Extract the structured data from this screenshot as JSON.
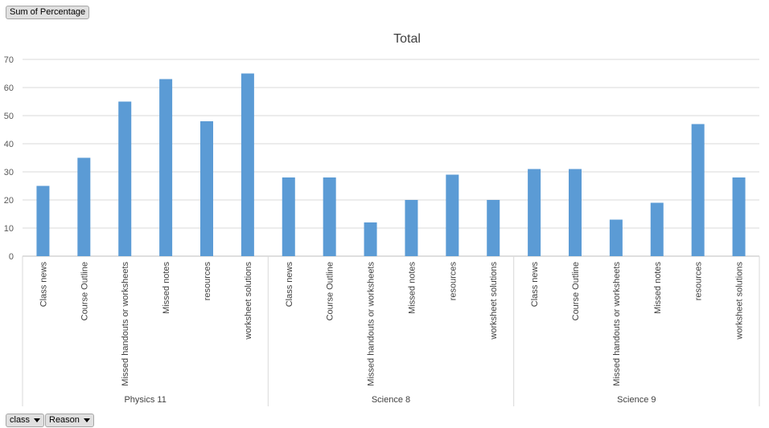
{
  "pivot_fields": {
    "value_field": "Sum of Percentage",
    "axis_fields": [
      "class",
      "Reason"
    ]
  },
  "chart_data": {
    "type": "bar",
    "title": "Total",
    "xlabel": "",
    "ylabel": "",
    "ylim": [
      0,
      70
    ],
    "yticks": [
      0,
      10,
      20,
      30,
      40,
      50,
      60,
      70
    ],
    "grid": true,
    "legend": "none",
    "bar_color": "#5b9bd5",
    "groups": [
      {
        "name": "Physics 11",
        "categories": [
          "Class news",
          "Course Outline",
          "Missed handouts or worksheets",
          "Missed notes",
          "resources",
          "worksheet solutions"
        ],
        "values": [
          25,
          35,
          55,
          63,
          48,
          65
        ]
      },
      {
        "name": "Science 8",
        "categories": [
          "Class news",
          "Course Outline",
          "Missed handouts or worksheets",
          "Missed notes",
          "resources",
          "worksheet solutions"
        ],
        "values": [
          28,
          28,
          12,
          20,
          29,
          20
        ]
      },
      {
        "name": "Science 9",
        "categories": [
          "Class news",
          "Course Outline",
          "Missed handouts or worksheets",
          "Missed notes",
          "resources",
          "worksheet solutions"
        ],
        "values": [
          31,
          31,
          13,
          19,
          47,
          28
        ]
      }
    ]
  }
}
